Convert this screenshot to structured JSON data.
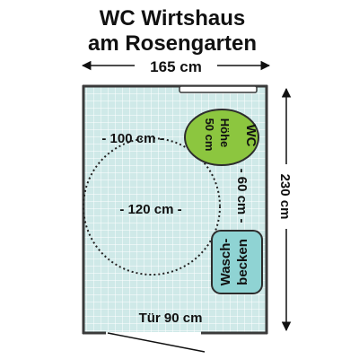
{
  "title": {
    "line1": "WC Wirtshaus",
    "line2": "am Rosengarten"
  },
  "dimensions": {
    "room_width": "165 cm",
    "room_depth": "230 cm",
    "turning_circle_width": "- 100 cm -",
    "turning_circle_depth": "- 120 cm -",
    "wc_to_basin_distance": "- 60 cm -",
    "door_width": "Tür 90 cm"
  },
  "fixtures": {
    "wc": {
      "label": "WC",
      "height_label": "Höhe",
      "height_value": "50 cm"
    },
    "basin": {
      "line1": "Wasch-",
      "line2": "becken"
    }
  },
  "colors": {
    "floor_tile": "#cfe9e8",
    "tile_grid": "#ffffff",
    "wall": "#3a3a3a",
    "wc_fill": "#8cc63f",
    "basin_fill": "#8fd3d3",
    "text": "#111111"
  }
}
